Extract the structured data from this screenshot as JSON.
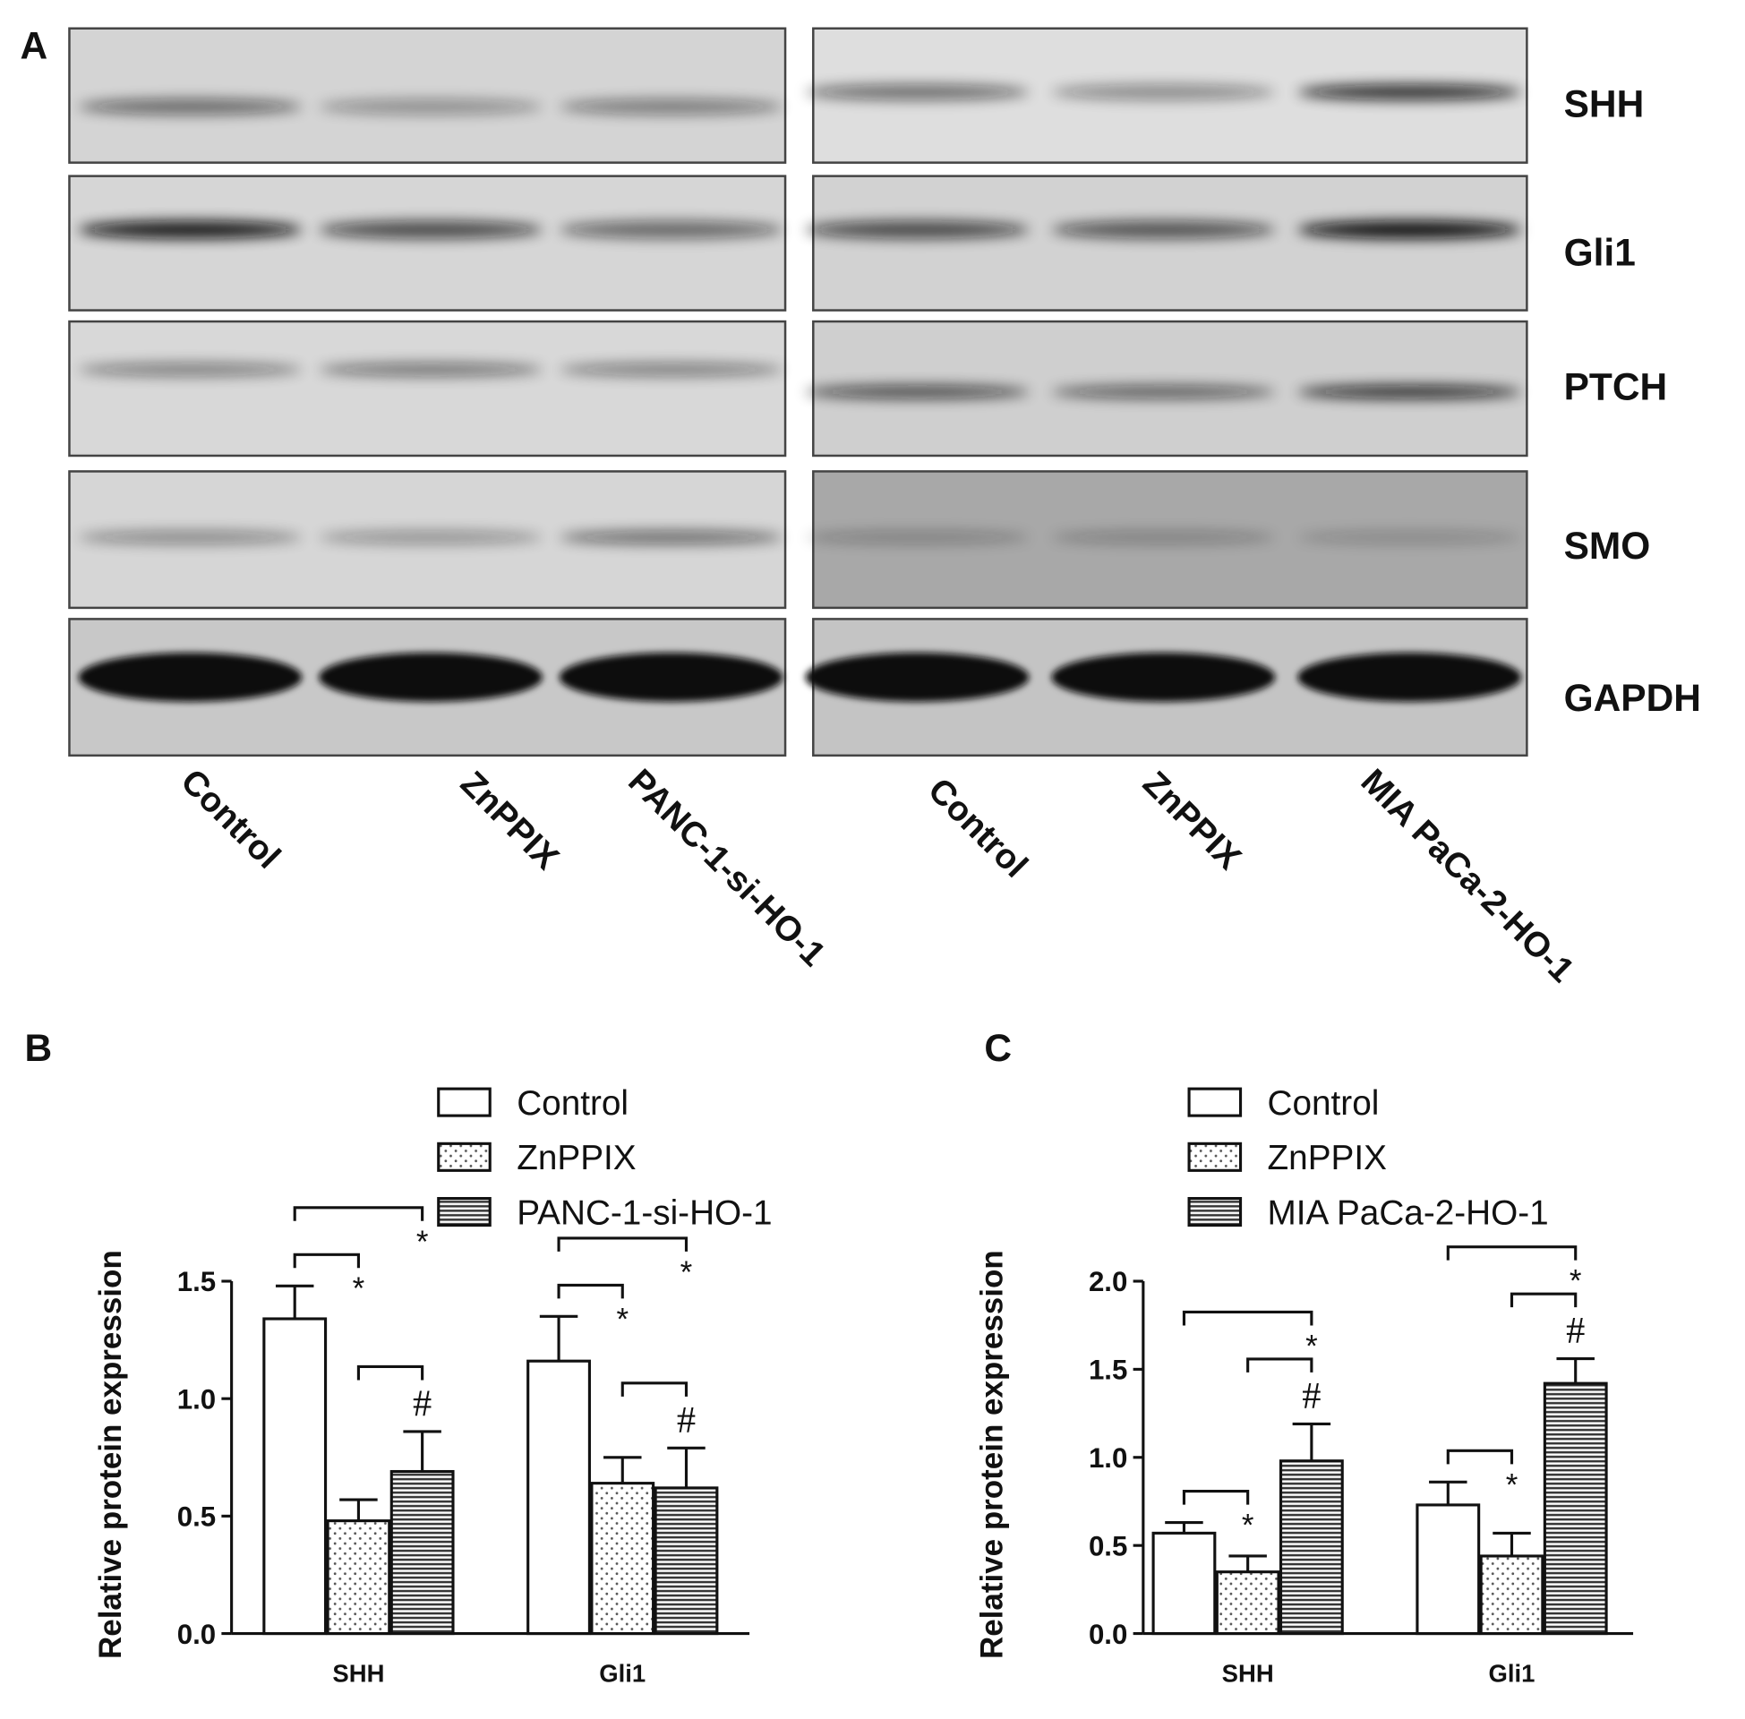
{
  "blots": {
    "label": "A",
    "proteins": [
      "SHH",
      "Gli1",
      "PTCH",
      "SMO",
      "GAPDH"
    ],
    "lanes_left": [
      "Control",
      "ZnPPIX",
      "PANC-1-si-HO-1"
    ],
    "lanes_right": [
      "Control",
      "ZnPPIX",
      "MIA PaCa-2-HO-1"
    ]
  },
  "chart_data": [
    {
      "label": "B",
      "type": "bar",
      "ylabel": "Relative protein expression",
      "categories": [
        "SHH",
        "Gli1"
      ],
      "series": [
        {
          "name": "Control",
          "pattern": "open",
          "values": [
            1.34,
            1.16
          ],
          "errors": [
            0.14,
            0.19
          ]
        },
        {
          "name": "ZnPPIX",
          "pattern": "dots",
          "values": [
            0.48,
            0.64
          ],
          "errors": [
            0.09,
            0.11
          ],
          "sig_vs_first": [
            "*",
            "*"
          ]
        },
        {
          "name": "PANC-1-si-HO-1",
          "pattern": "stripes",
          "values": [
            0.69,
            0.62
          ],
          "errors": [
            0.17,
            0.17
          ],
          "sig_vs_first": [
            "*",
            "*"
          ],
          "sig_vs_second": [
            "#",
            "#"
          ]
        }
      ],
      "ylim": [
        0,
        1.5
      ],
      "yticks": [
        {
          "value": 0,
          "label": "0.0"
        },
        0.5,
        {
          "value": 1,
          "label": "1.0"
        },
        1.5
      ]
    },
    {
      "label": "C",
      "type": "bar",
      "ylabel": "Relative protein expression",
      "categories": [
        "SHH",
        "Gli1"
      ],
      "series": [
        {
          "name": "Control",
          "pattern": "open",
          "values": [
            0.57,
            0.73
          ],
          "errors": [
            0.06,
            0.13
          ]
        },
        {
          "name": "ZnPPIX",
          "pattern": "dots",
          "values": [
            0.35,
            0.44
          ],
          "errors": [
            0.09,
            0.13
          ],
          "sig_vs_first": [
            "*",
            "*"
          ]
        },
        {
          "name": "MIA PaCa-2-HO-1",
          "pattern": "stripes",
          "values": [
            0.98,
            1.42
          ],
          "errors": [
            0.21,
            0.14
          ],
          "sig_vs_first": [
            "*",
            "*"
          ],
          "sig_vs_second": [
            "#",
            "#"
          ]
        }
      ],
      "ylim": [
        0,
        2
      ],
      "yticks": [
        {
          "value": 0,
          "label": "0.0"
        },
        0.5,
        {
          "value": 1,
          "label": "1.0"
        },
        1.5,
        {
          "value": 2,
          "label": "2.0"
        }
      ]
    }
  ]
}
